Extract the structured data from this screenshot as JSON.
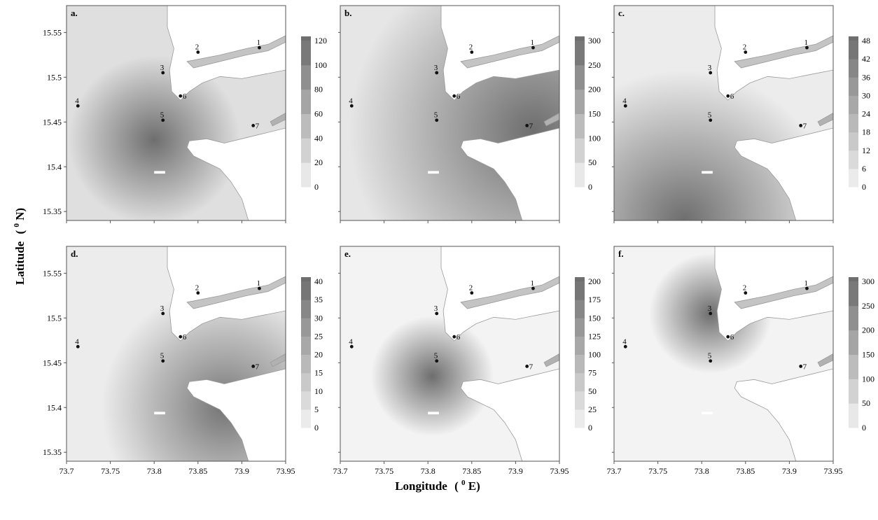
{
  "figure": {
    "x_axis_label": "Longitude",
    "x_axis_unit": "(",
    "x_axis_unit_sup": "0",
    "x_axis_unit_tail": "E)",
    "y_axis_label": "Latitude",
    "y_axis_unit": "(",
    "y_axis_unit_sup": "0",
    "y_axis_unit_tail": "N)",
    "x_ticks": [
      "73.7",
      "73.75",
      "73.8",
      "73.85",
      "73.9",
      "73.95"
    ],
    "y_ticks": [
      "15.35",
      "15.4",
      "15.45",
      "15.5",
      "15.55"
    ],
    "colors": {
      "scale_light": "#f3f3f3",
      "scale_dark": "#6e6e6e",
      "coast_line": "#9a9a9a",
      "frame": "#555555",
      "station_dot": "#111111"
    }
  },
  "stations": [
    {
      "id": "1",
      "lon": 73.92,
      "lat": 15.533
    },
    {
      "id": "2",
      "lon": 73.85,
      "lat": 15.528
    },
    {
      "id": "3",
      "lon": 73.81,
      "lat": 15.505
    },
    {
      "id": "4",
      "lon": 73.713,
      "lat": 15.468
    },
    {
      "id": "5",
      "lon": 73.81,
      "lat": 15.452
    },
    {
      "id": "6",
      "lon": 73.83,
      "lat": 15.479
    },
    {
      "id": "7",
      "lon": 73.913,
      "lat": 15.446
    }
  ],
  "panels": [
    {
      "letter": "a.",
      "scale_ticks": [
        "0",
        "20",
        "40",
        "60",
        "80",
        "100",
        "120"
      ],
      "max": 130,
      "field": {
        "type": "radial",
        "lon": 73.8,
        "lat": 15.43,
        "peak": 1.0,
        "radius": 0.14,
        "min": 0.15
      }
    },
    {
      "letter": "b.",
      "scale_ticks": [
        "0",
        "50",
        "100",
        "150",
        "200",
        "250",
        "300"
      ],
      "max": 320,
      "field": {
        "type": "radial",
        "lon": 73.92,
        "lat": 15.44,
        "peak": 1.0,
        "radius": 0.3,
        "min": 0.1
      }
    },
    {
      "letter": "c.",
      "scale_ticks": [
        "0",
        "6",
        "12",
        "18",
        "24",
        "30",
        "36",
        "42",
        "48"
      ],
      "max": 50,
      "field": {
        "type": "radial",
        "lon": 73.78,
        "lat": 15.34,
        "peak": 1.0,
        "radius": 0.25,
        "min": 0.05
      }
    },
    {
      "letter": "d.",
      "scale_ticks": [
        "0",
        "5",
        "10",
        "15",
        "20",
        "25",
        "30",
        "35",
        "40"
      ],
      "max": 44,
      "field": {
        "type": "radial",
        "lon": 73.88,
        "lat": 15.4,
        "peak": 0.95,
        "radius": 0.2,
        "min": 0.05
      }
    },
    {
      "letter": "e.",
      "scale_ticks": [
        "0",
        "25",
        "50",
        "75",
        "100",
        "125",
        "150",
        "175",
        "200"
      ],
      "max": 210,
      "field": {
        "type": "radial",
        "lon": 73.805,
        "lat": 15.435,
        "peak": 1.0,
        "radius": 0.1,
        "min": 0.0
      }
    },
    {
      "letter": "f.",
      "scale_ticks": [
        "0",
        "50",
        "100",
        "150",
        "200",
        "250",
        "300"
      ],
      "max": 320,
      "field": {
        "type": "radial",
        "lon": 73.81,
        "lat": 15.505,
        "peak": 1.0,
        "radius": 0.1,
        "min": 0.0
      }
    }
  ]
}
